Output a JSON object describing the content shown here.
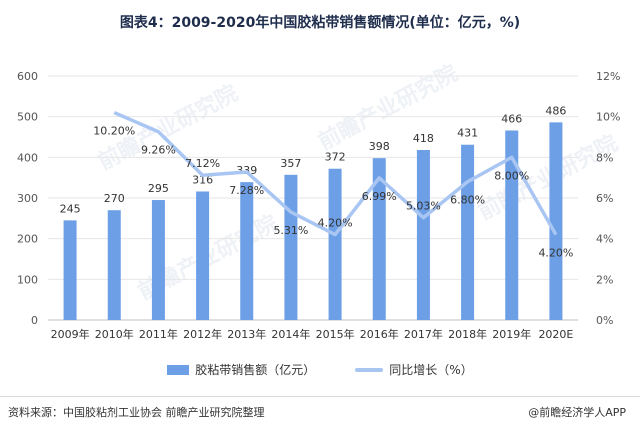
{
  "title": "图表4：2009-2020年中国胶粘带销售额情况(单位：亿元，%)",
  "colors": {
    "bar": "#6c9fe6",
    "line": "#a9c6f2",
    "grid": "#e6e6e6",
    "text": "#333333"
  },
  "chart_data": {
    "type": "bar",
    "categories": [
      "2009年",
      "2010年",
      "2011年",
      "2012年",
      "2013年",
      "2014年",
      "2015年",
      "2016年",
      "2017年",
      "2018年",
      "2019年",
      "2020E"
    ],
    "series": [
      {
        "name": "胶粘带销售额（亿元）",
        "type": "bar",
        "axis": "left",
        "values": [
          245,
          270,
          295,
          316,
          339,
          357,
          372,
          398,
          418,
          431,
          466,
          486
        ]
      },
      {
        "name": "同比增长（%）",
        "type": "line",
        "axis": "right",
        "values": [
          null,
          10.2,
          9.26,
          7.12,
          7.28,
          5.31,
          4.2,
          6.99,
          5.03,
          6.8,
          8.0,
          4.2
        ],
        "labels": [
          "",
          "10.20%",
          "9.26%",
          "7.12%",
          "7.28%",
          "5.31%",
          "4.20%",
          "6.99%",
          "5.03%",
          "6.80%",
          "8.00%",
          "4.20%"
        ]
      }
    ],
    "ylim_left": [
      0,
      600
    ],
    "ylim_right": [
      0,
      12
    ],
    "left_ticks": [
      "0",
      "100",
      "200",
      "300",
      "400",
      "500",
      "600"
    ],
    "right_ticks": [
      "0%",
      "2%",
      "4%",
      "6%",
      "8%",
      "10%",
      "12%"
    ],
    "grid": true,
    "legend": "bottom"
  },
  "legend": {
    "bar_label": "胶粘带销售额（亿元）",
    "line_label": "同比增长（%）"
  },
  "source": "资料来源：中国胶粘剂工业协会 前瞻产业研究院整理",
  "credit": "@前瞻经济学人APP",
  "watermark": "前瞻产业研究院"
}
